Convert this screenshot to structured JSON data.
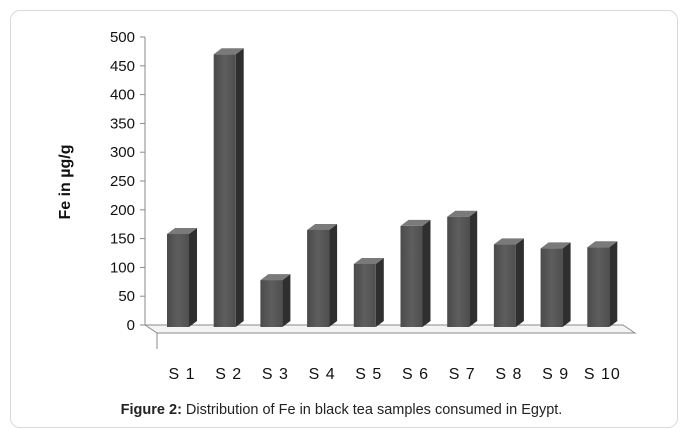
{
  "chart_data": {
    "type": "bar",
    "style": "3d",
    "categories": [
      "S 1",
      "S 2",
      "S 3",
      "S 4",
      "S 5",
      "S 6",
      "S 7",
      "S 8",
      "S 9",
      "S 10"
    ],
    "values": [
      158,
      470,
      78,
      165,
      106,
      172,
      188,
      140,
      133,
      135
    ],
    "ylabel": "Fe in µg/g",
    "ylim": [
      0,
      500
    ],
    "yticks": [
      "0",
      "50",
      "100",
      "150",
      "200",
      "250",
      "300",
      "350",
      "400",
      "450",
      "500"
    ],
    "grid": false,
    "bar_color": "#555555"
  },
  "caption": {
    "label": "Figure 2:",
    "text": " Distribution of Fe in black tea samples consumed in Egypt."
  }
}
